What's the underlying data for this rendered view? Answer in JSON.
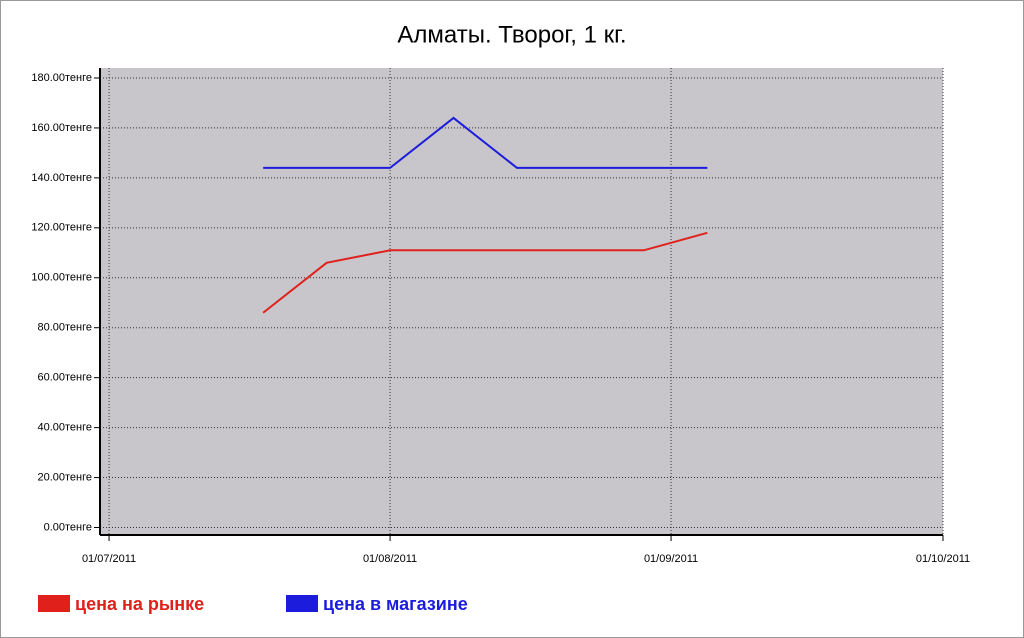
{
  "chart_data": {
    "type": "line",
    "title": "Алматы. Творог, 1 кг.",
    "x": [
      "18/07/2011",
      "25/07/2011",
      "01/08/2011",
      "08/08/2011",
      "15/08/2011",
      "22/08/2011",
      "29/08/2011",
      "05/09/2011"
    ],
    "series": [
      {
        "name": "цена на рынке",
        "color": "#e0201b",
        "values": [
          86,
          106,
          111,
          111,
          111,
          111,
          111,
          118
        ]
      },
      {
        "name": "цена в магазине",
        "color": "#1c1cdc",
        "values": [
          144,
          144,
          144,
          164,
          144,
          144,
          144,
          144
        ]
      }
    ],
    "xlim": [
      "30/06/2011",
      "01/10/2011"
    ],
    "xticks": [
      "01/07/2011",
      "01/08/2011",
      "01/09/2011",
      "01/10/2011"
    ],
    "ylim": [
      -3,
      184
    ],
    "yticks": [
      {
        "value": 0,
        "label": "0.00тенге"
      },
      {
        "value": 20,
        "label": "20.00тенге"
      },
      {
        "value": 40,
        "label": "40.00тенге"
      },
      {
        "value": 60,
        "label": "60.00тенге"
      },
      {
        "value": 80,
        "label": "80.00тенге"
      },
      {
        "value": 100,
        "label": "100.00тенге"
      },
      {
        "value": 120,
        "label": "120.00тенге"
      },
      {
        "value": 140,
        "label": "140.00тенге"
      },
      {
        "value": 160,
        "label": "160.00тенге"
      },
      {
        "value": 180,
        "label": "180.00тенге"
      }
    ],
    "grid": true,
    "plot_background": "#c8c6ca"
  }
}
